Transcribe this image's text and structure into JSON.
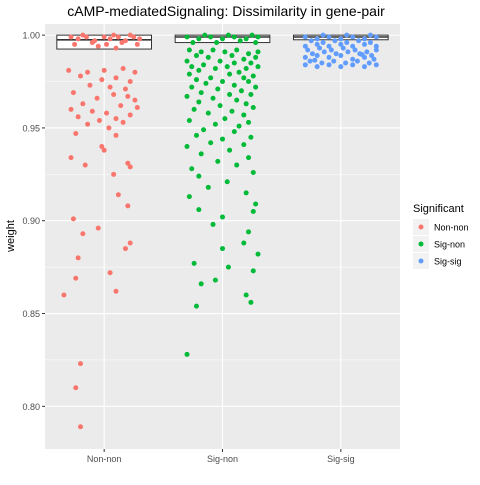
{
  "chart_data": {
    "type": "scatter",
    "title": "cAMP-mediatedSignaling: Dissimilarity in gene-pair",
    "xlabel": "",
    "ylabel": "weight",
    "categories": [
      "Non-non",
      "Sig-non",
      "Sig-sig"
    ],
    "ylim": [
      0.777,
      1.006
    ],
    "yticks": [
      0.8,
      0.85,
      0.9,
      0.95,
      1.0
    ],
    "ytick_labels": [
      "0.80",
      "0.85",
      "0.90",
      "0.95",
      "1.00"
    ],
    "grid": true,
    "legend": {
      "title": "Significant",
      "placement": "right",
      "entries": [
        "Non-non",
        "Sig-non",
        "Sig-sig"
      ]
    },
    "colors": {
      "Non-non": "#F8766D",
      "Sig-non": "#00BA38",
      "Sig-sig": "#619CFF",
      "panel": "#EBEBEB",
      "grid": "#ffffff"
    },
    "boxes": [
      {
        "category": "Non-non",
        "q1": 0.9925,
        "median": 0.9975,
        "q3": 1.0
      },
      {
        "category": "Sig-non",
        "q1": 0.996,
        "median": 0.999,
        "q3": 1.0
      },
      {
        "category": "Sig-sig",
        "q1": 0.9975,
        "median": 0.999,
        "q3": 1.0
      }
    ],
    "series": [
      {
        "name": "Non-non",
        "points": [
          [
            -0.28,
            0.999
          ],
          [
            -0.22,
            0.998
          ],
          [
            -0.15,
            0.999
          ],
          [
            -0.08,
            0.997
          ],
          [
            0.0,
            0.999
          ],
          [
            0.05,
            0.998
          ],
          [
            0.12,
            0.999
          ],
          [
            0.18,
            0.997
          ],
          [
            0.25,
            0.999
          ],
          [
            0.3,
            0.998
          ],
          [
            -0.25,
            0.995
          ],
          [
            -0.1,
            0.996
          ],
          [
            0.02,
            0.995
          ],
          [
            0.15,
            0.996
          ],
          [
            0.28,
            0.995
          ],
          [
            -0.18,
            1.0
          ],
          [
            0.08,
            1.0
          ],
          [
            0.22,
            1.0
          ],
          [
            -0.05,
            0.994
          ],
          [
            0.1,
            0.993
          ],
          [
            -0.3,
            0.981
          ],
          [
            -0.14,
            0.98
          ],
          [
            0.0,
            0.981
          ],
          [
            0.16,
            0.982
          ],
          [
            0.26,
            0.98
          ],
          [
            -0.2,
            0.978
          ],
          [
            0.1,
            0.977
          ],
          [
            -0.02,
            0.976
          ],
          [
            0.22,
            0.975
          ],
          [
            -0.12,
            0.973
          ],
          [
            0.05,
            0.972
          ],
          [
            0.18,
            0.971
          ],
          [
            -0.26,
            0.969
          ],
          [
            0.08,
            0.968
          ],
          [
            0.2,
            0.967
          ],
          [
            -0.06,
            0.966
          ],
          [
            0.26,
            0.965
          ],
          [
            -0.18,
            0.963
          ],
          [
            0.14,
            0.962
          ],
          [
            0.28,
            0.961
          ],
          [
            -0.28,
            0.96
          ],
          [
            -0.1,
            0.959
          ],
          [
            0.02,
            0.958
          ],
          [
            0.22,
            0.957
          ],
          [
            -0.22,
            0.956
          ],
          [
            0.1,
            0.955
          ],
          [
            -0.04,
            0.954
          ],
          [
            0.16,
            0.953
          ],
          [
            -0.14,
            0.952
          ],
          [
            0.04,
            0.95
          ],
          [
            -0.24,
            0.947
          ],
          [
            0.1,
            0.946
          ],
          [
            -0.02,
            0.94
          ],
          [
            0.0,
            0.938
          ],
          [
            0.2,
            0.931
          ],
          [
            -0.28,
            0.934
          ],
          [
            0.22,
            0.929
          ],
          [
            -0.16,
            0.93
          ],
          [
            0.08,
            0.925
          ],
          [
            0.12,
            0.914
          ],
          [
            0.2,
            0.908
          ],
          [
            -0.26,
            0.901
          ],
          [
            -0.05,
            0.896
          ],
          [
            -0.18,
            0.893
          ],
          [
            0.22,
            0.888
          ],
          [
            0.18,
            0.885
          ],
          [
            -0.22,
            0.88
          ],
          [
            0.05,
            0.872
          ],
          [
            -0.24,
            0.869
          ],
          [
            -0.34,
            0.86
          ],
          [
            0.1,
            0.862
          ],
          [
            -0.2,
            0.823
          ],
          [
            -0.24,
            0.81
          ],
          [
            -0.2,
            0.789
          ]
        ]
      },
      {
        "name": "Sig-non",
        "points": [
          [
            -0.3,
            0.999
          ],
          [
            -0.2,
            0.998
          ],
          [
            -0.1,
            0.999
          ],
          [
            0.0,
            0.998
          ],
          [
            0.1,
            0.999
          ],
          [
            0.2,
            0.998
          ],
          [
            0.3,
            0.999
          ],
          [
            -0.25,
            0.996
          ],
          [
            -0.05,
            0.996
          ],
          [
            0.15,
            0.997
          ],
          [
            0.28,
            0.996
          ],
          [
            -0.15,
            1.0
          ],
          [
            0.05,
            1.0
          ],
          [
            0.25,
            1.0
          ],
          [
            -0.28,
            0.992
          ],
          [
            -0.18,
            0.991
          ],
          [
            -0.08,
            0.992
          ],
          [
            0.02,
            0.991
          ],
          [
            0.12,
            0.992
          ],
          [
            0.22,
            0.99
          ],
          [
            0.3,
            0.991
          ],
          [
            -0.22,
            0.989
          ],
          [
            -0.12,
            0.988
          ],
          [
            0.08,
            0.989
          ],
          [
            0.18,
            0.987
          ],
          [
            0.28,
            0.988
          ],
          [
            -0.3,
            0.986
          ],
          [
            -0.02,
            0.986
          ],
          [
            0.1,
            0.985
          ],
          [
            0.24,
            0.985
          ],
          [
            -0.26,
            0.983
          ],
          [
            -0.16,
            0.984
          ],
          [
            0.04,
            0.983
          ],
          [
            0.2,
            0.982
          ],
          [
            -0.06,
            0.982
          ],
          [
            0.3,
            0.983
          ],
          [
            -0.2,
            0.981
          ],
          [
            0.14,
            0.98
          ],
          [
            -0.28,
            0.979
          ],
          [
            0.06,
            0.979
          ],
          [
            0.26,
            0.978
          ],
          [
            -0.1,
            0.977
          ],
          [
            0.18,
            0.977
          ],
          [
            -0.22,
            0.976
          ],
          [
            0.0,
            0.975
          ],
          [
            0.22,
            0.975
          ],
          [
            -0.14,
            0.974
          ],
          [
            0.1,
            0.973
          ],
          [
            -0.26,
            0.972
          ],
          [
            0.28,
            0.972
          ],
          [
            -0.04,
            0.971
          ],
          [
            0.16,
            0.97
          ],
          [
            -0.18,
            0.969
          ],
          [
            0.06,
            0.968
          ],
          [
            0.24,
            0.968
          ],
          [
            -0.3,
            0.967
          ],
          [
            -0.08,
            0.966
          ],
          [
            0.12,
            0.965
          ],
          [
            -0.2,
            0.964
          ],
          [
            0.2,
            0.963
          ],
          [
            -0.02,
            0.962
          ],
          [
            0.26,
            0.961
          ],
          [
            -0.24,
            0.96
          ],
          [
            0.08,
            0.959
          ],
          [
            -0.12,
            0.958
          ],
          [
            0.18,
            0.957
          ],
          [
            0.02,
            0.955
          ],
          [
            -0.28,
            0.954
          ],
          [
            0.22,
            0.953
          ],
          [
            -0.06,
            0.952
          ],
          [
            0.14,
            0.951
          ],
          [
            -0.16,
            0.949
          ],
          [
            0.1,
            0.948
          ],
          [
            -0.22,
            0.946
          ],
          [
            0.24,
            0.945
          ],
          [
            0.0,
            0.944
          ],
          [
            -0.1,
            0.942
          ],
          [
            0.18,
            0.941
          ],
          [
            -0.3,
            0.94
          ],
          [
            0.06,
            0.938
          ],
          [
            -0.18,
            0.936
          ],
          [
            0.22,
            0.934
          ],
          [
            -0.04,
            0.932
          ],
          [
            0.12,
            0.93
          ],
          [
            -0.26,
            0.928
          ],
          [
            0.26,
            0.926
          ],
          [
            -0.2,
            0.924
          ],
          [
            0.04,
            0.921
          ],
          [
            -0.12,
            0.918
          ],
          [
            0.2,
            0.915
          ],
          [
            -0.28,
            0.913
          ],
          [
            0.28,
            0.909
          ],
          [
            -0.2,
            0.906
          ],
          [
            0.26,
            0.905
          ],
          [
            0.0,
            0.902
          ],
          [
            -0.08,
            0.898
          ],
          [
            0.22,
            0.894
          ],
          [
            0.18,
            0.888
          ],
          [
            0.0,
            0.885
          ],
          [
            0.3,
            0.882
          ],
          [
            -0.24,
            0.877
          ],
          [
            0.05,
            0.875
          ],
          [
            0.26,
            0.873
          ],
          [
            -0.06,
            0.868
          ],
          [
            -0.18,
            0.866
          ],
          [
            0.2,
            0.86
          ],
          [
            0.24,
            0.856
          ],
          [
            -0.22,
            0.854
          ],
          [
            -0.3,
            0.828
          ]
        ]
      },
      {
        "name": "Sig-sig",
        "points": [
          [
            -0.3,
            0.999
          ],
          [
            -0.2,
            0.998
          ],
          [
            -0.1,
            0.999
          ],
          [
            0.0,
            0.998
          ],
          [
            0.1,
            0.999
          ],
          [
            0.2,
            0.998
          ],
          [
            0.3,
            0.999
          ],
          [
            -0.25,
            0.997
          ],
          [
            -0.15,
            0.996
          ],
          [
            -0.05,
            0.997
          ],
          [
            0.05,
            0.996
          ],
          [
            0.15,
            0.997
          ],
          [
            0.25,
            0.996
          ],
          [
            -0.3,
            0.994
          ],
          [
            -0.2,
            0.995
          ],
          [
            -0.1,
            0.994
          ],
          [
            0.0,
            0.995
          ],
          [
            0.1,
            0.994
          ],
          [
            0.2,
            0.995
          ],
          [
            0.3,
            0.994
          ],
          [
            -0.28,
            0.992
          ],
          [
            -0.18,
            0.993
          ],
          [
            -0.08,
            0.992
          ],
          [
            0.02,
            0.993
          ],
          [
            0.12,
            0.992
          ],
          [
            0.22,
            0.991
          ],
          [
            0.3,
            0.992
          ],
          [
            -0.24,
            0.99
          ],
          [
            -0.14,
            0.991
          ],
          [
            -0.04,
            0.99
          ],
          [
            0.06,
            0.991
          ],
          [
            0.16,
            0.99
          ],
          [
            0.26,
            0.989
          ],
          [
            -0.3,
            0.988
          ],
          [
            -0.2,
            0.989
          ],
          [
            -0.1,
            0.988
          ],
          [
            0.0,
            0.989
          ],
          [
            0.1,
            0.987
          ],
          [
            0.2,
            0.988
          ],
          [
            0.28,
            0.987
          ],
          [
            -0.26,
            0.986
          ],
          [
            -0.16,
            0.985
          ],
          [
            -0.06,
            0.986
          ],
          [
            0.04,
            0.985
          ],
          [
            0.14,
            0.986
          ],
          [
            0.24,
            0.985
          ],
          [
            -0.3,
            0.984
          ],
          [
            -0.2,
            0.983
          ],
          [
            -0.1,
            0.984
          ],
          [
            0.0,
            0.983
          ],
          [
            0.1,
            0.984
          ],
          [
            0.2,
            0.983
          ],
          [
            0.3,
            0.984
          ],
          [
            -0.15,
            1.0
          ],
          [
            0.05,
            1.0
          ],
          [
            0.25,
            1.0
          ],
          [
            -0.22,
            0.9865
          ],
          [
            0.18,
            0.9895
          ]
        ]
      }
    ]
  }
}
